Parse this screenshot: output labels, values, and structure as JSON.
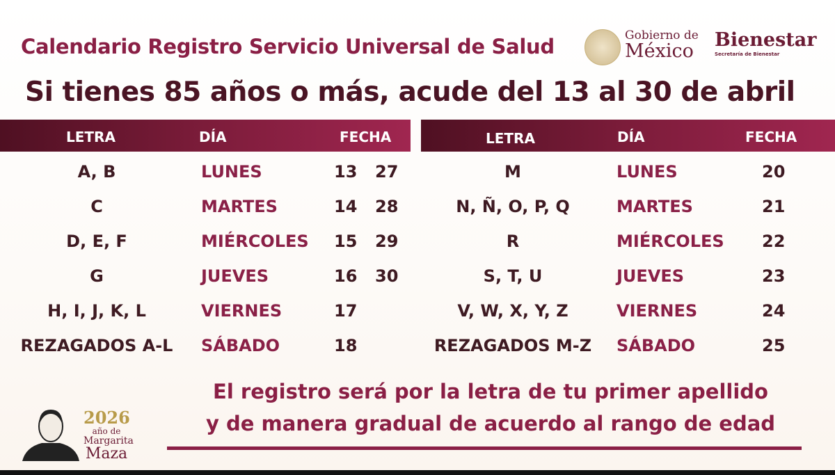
{
  "header": {
    "title": "Calendario Registro Servicio Universal de Salud",
    "subtitle": "Si tienes 85 años o más, acude del 13 al 30 de abril"
  },
  "logos": {
    "gobierno_line1": "Gobierno de",
    "gobierno_line2": "México",
    "bienestar": "Bienestar",
    "bienestar_sub": "Secretaría de Bienestar"
  },
  "columns": {
    "letra": "LETRA",
    "dia": "DÍA",
    "fecha": "FECHA"
  },
  "left_table": [
    {
      "letra": "A, B",
      "dia": "LUNES",
      "fecha1": "13",
      "fecha2": "27"
    },
    {
      "letra": "C",
      "dia": "MARTES",
      "fecha1": "14",
      "fecha2": "28"
    },
    {
      "letra": "D, E, F",
      "dia": "MIÉRCOLES",
      "fecha1": "15",
      "fecha2": "29"
    },
    {
      "letra": "G",
      "dia": "JUEVES",
      "fecha1": "16",
      "fecha2": "30"
    },
    {
      "letra": "H, I, J, K, L",
      "dia": "VIERNES",
      "fecha1": "17",
      "fecha2": ""
    },
    {
      "letra": "REZAGADOS A-L",
      "dia": "SÁBADO",
      "fecha1": "18",
      "fecha2": ""
    }
  ],
  "right_table": [
    {
      "letra": "M",
      "dia": "LUNES",
      "fecha1": "20"
    },
    {
      "letra": "N, Ñ, O, P, Q",
      "dia": "MARTES",
      "fecha1": "21"
    },
    {
      "letra": "R",
      "dia": "MIÉRCOLES",
      "fecha1": "22"
    },
    {
      "letra": "S, T, U",
      "dia": "JUEVES",
      "fecha1": "23"
    },
    {
      "letra": "V, W, X, Y, Z",
      "dia": "VIERNES",
      "fecha1": "24"
    },
    {
      "letra": "REZAGADOS M-Z",
      "dia": "SÁBADO",
      "fecha1": "25"
    }
  ],
  "footer": {
    "line1": "El registro será por la letra de tu primer apellido",
    "line2": "y de manera gradual de acuerdo al rango de edad",
    "year": "2026",
    "year_sub": "año de",
    "name1": "Margarita",
    "name2": "Maza"
  },
  "colors": {
    "accent": "#8a1f45",
    "dark": "#4a1424",
    "gold": "#b89b4a"
  }
}
